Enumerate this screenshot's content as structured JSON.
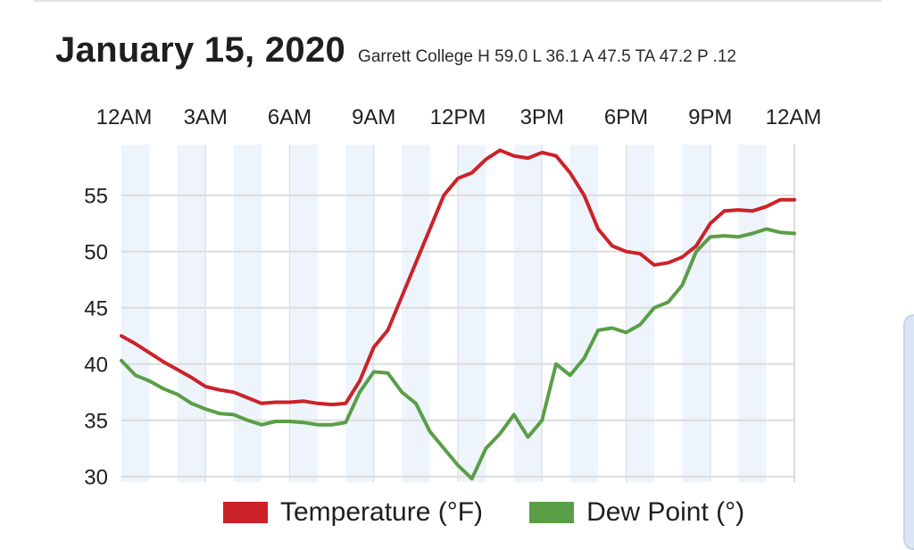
{
  "header": {
    "date_title": "January 15, 2020",
    "station_summary": "Garrett College H 59.0 L 36.1 A 47.5 TA 47.2 P .12"
  },
  "chart_data": {
    "type": "line",
    "title": "January 15, 2020",
    "subtitle": "Garrett College H 59.0 L 36.1 A 47.5 TA 47.2 P .12",
    "x_tick_labels": [
      "12AM",
      "3AM",
      "6AM",
      "9AM",
      "12PM",
      "3PM",
      "6PM",
      "9PM",
      "12AM"
    ],
    "x_tick_hours": [
      0,
      3,
      6,
      9,
      12,
      15,
      18,
      21,
      24
    ],
    "y_ticks": [
      30,
      35,
      40,
      45,
      50,
      55
    ],
    "ylim": [
      29.5,
      59.5
    ],
    "xlim": [
      0,
      24
    ],
    "grid": true,
    "legend_position": "bottom",
    "x": [
      0,
      0.5,
      1,
      1.5,
      2,
      2.5,
      3,
      3.5,
      4,
      4.5,
      5,
      5.5,
      6,
      6.5,
      7,
      7.5,
      8,
      8.5,
      9,
      9.5,
      10,
      10.5,
      11,
      11.5,
      12,
      12.5,
      13,
      13.5,
      14,
      14.5,
      15,
      15.5,
      16,
      16.5,
      17,
      17.5,
      18,
      18.5,
      19,
      19.5,
      20,
      20.5,
      21,
      21.5,
      22,
      22.5,
      23,
      23.5,
      24
    ],
    "series": [
      {
        "name": "Temperature (°F)",
        "color": "#cc2229",
        "values": [
          42.5,
          41.8,
          41,
          40.2,
          39.5,
          38.8,
          38,
          37.7,
          37.5,
          37,
          36.5,
          36.6,
          36.6,
          36.7,
          36.5,
          36.4,
          36.5,
          38.5,
          41.5,
          43,
          46,
          49,
          52,
          55,
          56.5,
          57,
          58.2,
          59,
          58.5,
          58.3,
          58.8,
          58.5,
          57,
          55,
          52,
          50.5,
          50,
          49.8,
          48.8,
          49,
          49.5,
          50.5,
          52.5,
          53.6,
          53.7,
          53.6,
          54,
          54.6,
          54.6
        ]
      },
      {
        "name": "Dew Point (°)",
        "color": "#5a9e47",
        "values": [
          40.3,
          39,
          38.5,
          37.8,
          37.3,
          36.5,
          36,
          35.6,
          35.5,
          35,
          34.6,
          34.9,
          34.9,
          34.8,
          34.6,
          34.6,
          34.8,
          37.5,
          39.3,
          39.2,
          37.5,
          36.5,
          34,
          32.5,
          31,
          29.8,
          32.5,
          33.8,
          35.5,
          33.5,
          35,
          40,
          39,
          40.5,
          43,
          43.2,
          42.8,
          43.5,
          45,
          45.5,
          47,
          50,
          51.3,
          51.4,
          51.3,
          51.6,
          52,
          51.7,
          51.6
        ]
      }
    ]
  },
  "legend": {
    "items": [
      {
        "label": "Temperature (°F)",
        "color": "#cc2229"
      },
      {
        "label": "Dew Point (°)",
        "color": "#5a9e47"
      }
    ]
  }
}
